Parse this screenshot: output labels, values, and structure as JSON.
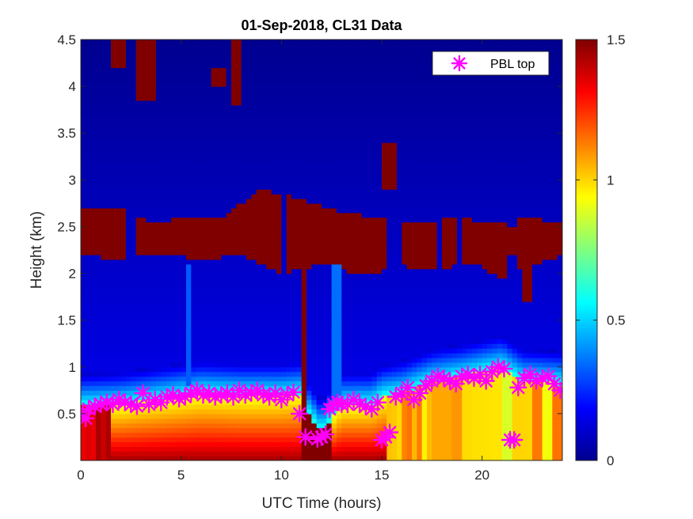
{
  "chart_data": {
    "type": "heatmap",
    "title": "01-Sep-2018, CL31 Data",
    "xlabel": "UTC Time (hours)",
    "ylabel": "Height (km)",
    "xlim": [
      0,
      24
    ],
    "ylim": [
      0,
      4.5
    ],
    "xticks": [
      0,
      5,
      10,
      15,
      20
    ],
    "yticks": [
      0.5,
      1,
      1.5,
      2,
      2.5,
      3,
      3.5,
      4,
      4.5
    ],
    "colorbar": {
      "limits": [
        0,
        1.5
      ],
      "ticks": [
        0,
        0.5,
        1,
        1.5
      ],
      "colormap": "jet"
    },
    "legend": {
      "position": "top-right",
      "entries": [
        {
          "label": "PBL top",
          "marker": "asterisk",
          "color": "#ff00ff"
        }
      ]
    },
    "series": [
      {
        "name": "PBL top",
        "x": [
          0.1,
          0.25,
          0.4,
          0.7,
          1.0,
          1.3,
          1.6,
          1.9,
          2.2,
          2.5,
          2.8,
          3.1,
          3.4,
          3.7,
          4.0,
          4.3,
          4.6,
          4.9,
          5.2,
          5.5,
          5.8,
          6.1,
          6.4,
          6.7,
          7.0,
          7.3,
          7.6,
          7.9,
          8.2,
          8.5,
          8.8,
          9.1,
          9.4,
          9.7,
          10.0,
          10.3,
          10.6,
          10.9,
          11.2,
          11.8,
          12.0,
          12.2,
          12.4,
          12.6,
          12.8,
          13.0,
          13.3,
          13.6,
          13.9,
          14.2,
          14.5,
          14.8,
          15.0,
          15.2,
          15.4,
          15.7,
          16.0,
          16.3,
          16.6,
          16.9,
          17.2,
          17.5,
          17.8,
          18.1,
          18.4,
          18.7,
          19.0,
          19.3,
          19.6,
          19.9,
          20.2,
          20.5,
          20.8,
          21.1,
          21.4,
          21.6,
          21.8,
          22.1,
          22.4,
          22.7,
          23.0,
          23.3,
          23.6,
          23.9
        ],
        "y": [
          0.5,
          0.45,
          0.55,
          0.58,
          0.6,
          0.62,
          0.6,
          0.65,
          0.62,
          0.6,
          0.58,
          0.72,
          0.6,
          0.65,
          0.62,
          0.68,
          0.7,
          0.66,
          0.68,
          0.72,
          0.75,
          0.7,
          0.72,
          0.68,
          0.7,
          0.72,
          0.68,
          0.75,
          0.7,
          0.72,
          0.75,
          0.7,
          0.68,
          0.72,
          0.65,
          0.7,
          0.73,
          0.5,
          0.25,
          0.23,
          0.25,
          0.28,
          0.55,
          0.6,
          0.62,
          0.6,
          0.6,
          0.65,
          0.6,
          0.58,
          0.55,
          0.62,
          0.22,
          0.25,
          0.3,
          0.68,
          0.72,
          0.78,
          0.65,
          0.72,
          0.8,
          0.85,
          0.9,
          0.88,
          0.85,
          0.82,
          0.9,
          0.92,
          0.88,
          0.92,
          0.85,
          0.95,
          1.0,
          0.98,
          0.22,
          0.22,
          0.78,
          0.88,
          0.92,
          0.85,
          0.88,
          0.9,
          0.82,
          0.75
        ]
      }
    ]
  }
}
